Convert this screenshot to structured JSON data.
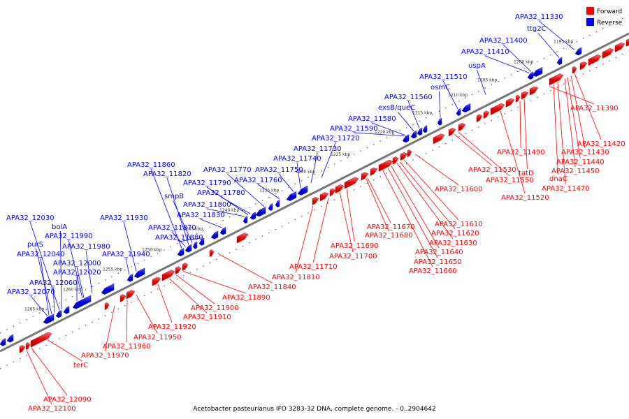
{
  "caption": "Acetobacter pasteurianus IFO 3283-32 DNA, complete genome. - 0..2904642",
  "legend": [
    {
      "label": "Forward",
      "color": "#ff0000"
    },
    {
      "label": "Reverse",
      "color": "#0000ff"
    }
  ],
  "colors": {
    "forward": "#ff0000",
    "reverse": "#0000ff",
    "backbone": "#777777"
  },
  "ticks": [
    "1195 kbp",
    "1200 kbp",
    "1205 kbp",
    "1210 kbp",
    "1215 kbp",
    "1220 kbp",
    "1225 kbp",
    "1230 kbp",
    "1235 kbp",
    "1240 kbp",
    "1245 kbp",
    "1250 kbp",
    "1255 kbp",
    "1260 kbp",
    "1265 kbp"
  ],
  "reverse_labels": [
    "APA32_11330",
    "ttg2C",
    "APA32_11400",
    "APA32_11410",
    "uspA",
    "APA32_11510",
    "osmC",
    "APA32_11560",
    "exsB/queC",
    "APA32_11580",
    "APA32_11590",
    "APA32_11720",
    "APA32_11730",
    "APA32_11740",
    "APA32_11750",
    "APA32_11760",
    "APA32_11770",
    "APA32_11780",
    "APA32_11790",
    "APA32_11800",
    "APA32_11820",
    "APA32_11830",
    "APA32_11860",
    "smpB",
    "APA32_11870",
    "APA32_11880",
    "APA32_11930",
    "APA32_11940",
    "APA32_11980",
    "APA32_11990",
    "APA32_12000",
    "APA32_12020",
    "APA32_12030",
    "bolA",
    "purS",
    "APA32_12040",
    "APA32_12060",
    "APA32_12070"
  ],
  "forward_labels": [
    "APA32_11390",
    "APA32_11420",
    "APA32_11430",
    "APA32_11440",
    "APA32_11450",
    "APA32_11470",
    "dnaC",
    "tatD",
    "APA32_11490",
    "APA32_11530",
    "APA32_11550",
    "APA32_11520",
    "APA32_11600",
    "APA32_11610",
    "APA32_11620",
    "APA32_11630",
    "APA32_11640",
    "APA32_11650",
    "APA32_11660",
    "APA32_11670",
    "APA32_11680",
    "APA32_11690",
    "APA32_11700",
    "APA32_11710",
    "APA32_11810",
    "APA32_11840",
    "APA32_11890",
    "APA32_11900",
    "APA32_11910",
    "APA32_11920",
    "APA32_11950",
    "APA32_11960",
    "APA32_11970",
    "terC",
    "APA32_12090",
    "APA32_12100"
  ]
}
